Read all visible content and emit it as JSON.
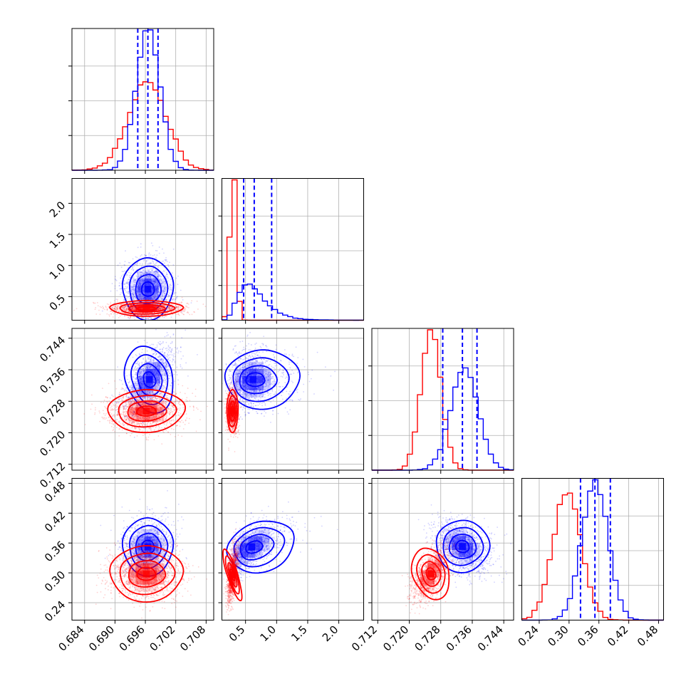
{
  "chart_data": {
    "type": "corner",
    "colors": {
      "series_a": "#0000ff",
      "series_b": "#ff0000"
    },
    "quantiles_series": "series_a",
    "parameters": [
      {
        "ticks": [
          0.684,
          0.69,
          0.696,
          0.702,
          0.708
        ],
        "tick_labels": [
          "0.684",
          "0.690",
          "0.696",
          "0.702",
          "0.708"
        ],
        "range": [
          0.6815,
          0.7095
        ]
      },
      {
        "ticks": [
          0.5,
          1.0,
          1.5,
          2.0
        ],
        "tick_labels": [
          "0.5",
          "1.0",
          "1.5",
          "2.0"
        ],
        "range": [
          0.12,
          2.4
        ]
      },
      {
        "ticks": [
          0.712,
          0.72,
          0.728,
          0.736,
          0.744
        ],
        "tick_labels": [
          "0.712",
          "0.720",
          "0.728",
          "0.736",
          "0.744"
        ],
        "range": [
          0.7105,
          0.7465
        ]
      },
      {
        "ticks": [
          0.24,
          0.3,
          0.36,
          0.42,
          0.48
        ],
        "tick_labels": [
          "0.24",
          "0.30",
          "0.36",
          "0.42",
          "0.48"
        ],
        "range": [
          0.205,
          0.49
        ]
      }
    ],
    "marginals": [
      {
        "quantiles": [
          0.6945,
          0.6965,
          0.6985
        ],
        "series_a": {
          "mean": 0.6965,
          "sd": 0.0023
        },
        "series_b": {
          "mean": 0.6964,
          "sd": 0.0037
        }
      },
      {
        "quantiles": [
          0.47,
          0.64,
          0.92
        ],
        "series_a": {
          "mean": 0.64,
          "sd": 0.26,
          "skew": true
        },
        "series_b": {
          "mean": 0.3,
          "sd": 0.045
        }
      },
      {
        "quantiles": [
          0.7285,
          0.7335,
          0.7372
        ],
        "series_a": {
          "mean": 0.734,
          "sd": 0.0035
        },
        "series_b": {
          "mean": 0.7255,
          "sd": 0.0025
        }
      },
      {
        "quantiles": [
          0.323,
          0.352,
          0.383
        ],
        "series_a": {
          "mean": 0.352,
          "sd": 0.026
        },
        "series_b": {
          "mean": 0.296,
          "sd": 0.028
        }
      }
    ],
    "joints": [
      {
        "row": 1,
        "col": 0,
        "series_a": {
          "center": [
            0.6965,
            0.62
          ],
          "sd": [
            0.0025,
            0.24
          ],
          "rho": 0.05
        },
        "series_b": {
          "center": [
            0.6962,
            0.31
          ],
          "sd": [
            0.0036,
            0.06
          ],
          "rho": 0.0
        }
      },
      {
        "row": 2,
        "col": 0,
        "series_a": {
          "center": [
            0.6968,
            0.7335
          ],
          "sd": [
            0.0025,
            0.0045
          ],
          "rho": 0.55
        },
        "series_b": {
          "center": [
            0.6962,
            0.7255
          ],
          "sd": [
            0.0038,
            0.0026
          ],
          "rho": 0.05
        }
      },
      {
        "row": 2,
        "col": 1,
        "series_a": {
          "center": [
            0.62,
            0.7335
          ],
          "sd": [
            0.26,
            0.0036
          ],
          "rho": 0.05
        },
        "series_b": {
          "center": [
            0.29,
            0.7255
          ],
          "sd": [
            0.045,
            0.0026
          ],
          "rho": 0.0
        }
      },
      {
        "row": 3,
        "col": 0,
        "series_a": {
          "center": [
            0.6965,
            0.352
          ],
          "sd": [
            0.0025,
            0.028
          ],
          "rho": 0.1
        },
        "series_b": {
          "center": [
            0.6962,
            0.298
          ],
          "sd": [
            0.0036,
            0.027
          ],
          "rho": 0.0
        }
      },
      {
        "row": 3,
        "col": 1,
        "series_a": {
          "center": [
            0.6,
            0.352
          ],
          "sd": [
            0.26,
            0.026
          ],
          "rho": 0.55
        },
        "series_b": {
          "center": [
            0.29,
            0.296
          ],
          "sd": [
            0.045,
            0.028
          ],
          "rho": 0.55
        }
      },
      {
        "row": 3,
        "col": 2,
        "series_a": {
          "center": [
            0.7335,
            0.353
          ],
          "sd": [
            0.0035,
            0.026
          ],
          "rho": -0.35
        },
        "series_b": {
          "center": [
            0.7255,
            0.298
          ],
          "sd": [
            0.0025,
            0.028
          ],
          "rho": 0.6
        }
      }
    ],
    "grid": true,
    "legend": "none"
  }
}
